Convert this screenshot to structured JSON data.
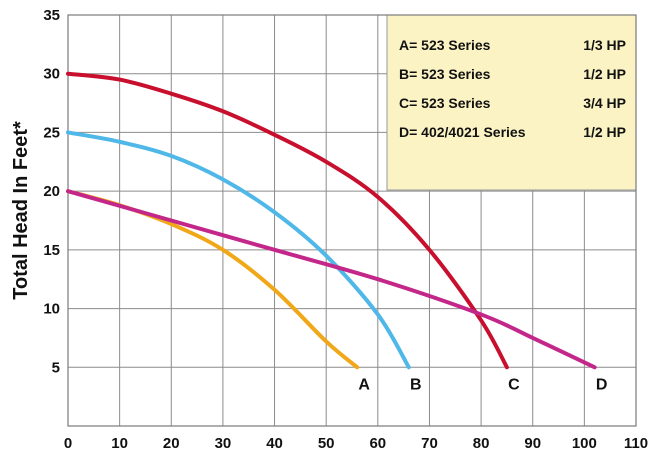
{
  "chart_data": {
    "type": "line",
    "title": "",
    "xlabel": "",
    "ylabel": "Total Head In Feet*",
    "xlim": [
      0,
      110
    ],
    "ylim": [
      0,
      35
    ],
    "x_ticks": [
      0,
      10,
      20,
      30,
      40,
      50,
      60,
      70,
      80,
      90,
      100,
      110
    ],
    "y_ticks": [
      5,
      10,
      15,
      20,
      25,
      30,
      35
    ],
    "grid": true,
    "legend_position": "top-right",
    "legend_background": "#fbf3c4",
    "series": [
      {
        "name": "A",
        "legend_label": "A= 523 Series",
        "hp": "1/3 HP",
        "color": "#f0a818",
        "x": [
          0,
          10,
          20,
          30,
          40,
          50,
          56
        ],
        "y": [
          20,
          18.8,
          17.2,
          15,
          11.6,
          7.2,
          5
        ]
      },
      {
        "name": "B",
        "legend_label": "B= 523 Series",
        "hp": "1/2 HP",
        "color": "#4fb8e8",
        "x": [
          0,
          10,
          20,
          30,
          40,
          50,
          60,
          66
        ],
        "y": [
          25,
          24.2,
          23,
          21,
          18.2,
          14.5,
          9.5,
          5
        ]
      },
      {
        "name": "C",
        "legend_label": "C= 523 Series",
        "hp": "3/4 HP",
        "color": "#c8102e",
        "x": [
          0,
          10,
          20,
          30,
          40,
          50,
          60,
          70,
          80,
          85
        ],
        "y": [
          30,
          29.5,
          28.3,
          26.8,
          24.8,
          22.5,
          19.5,
          15,
          9,
          5
        ]
      },
      {
        "name": "D",
        "legend_label": "D= 402/4021 Series",
        "hp": "1/2 HP",
        "color": "#c4278a",
        "x": [
          0,
          20,
          40,
          60,
          80,
          90,
          102
        ],
        "y": [
          20,
          17.5,
          15,
          12.5,
          9.5,
          7.5,
          5
        ]
      }
    ]
  }
}
